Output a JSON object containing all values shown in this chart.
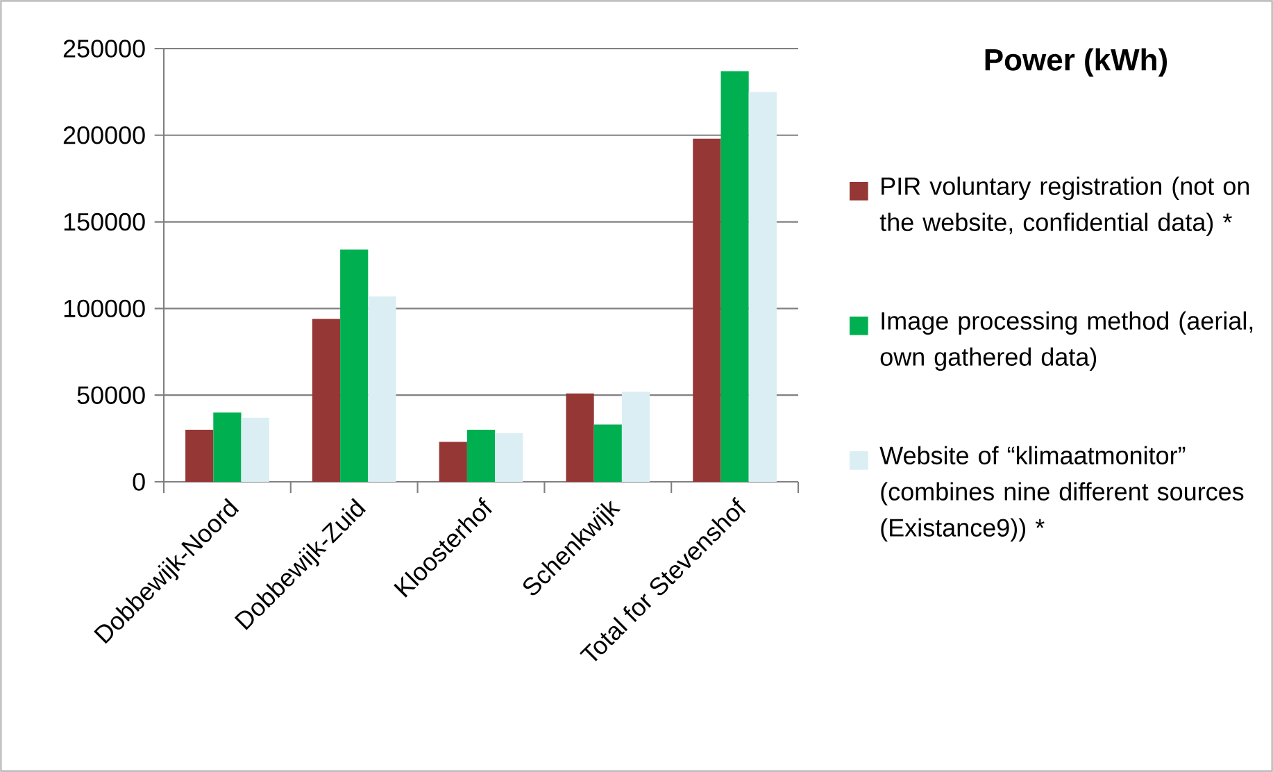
{
  "chart_data": {
    "type": "bar",
    "legend_title": "Power (kWh)",
    "categories": [
      "Dobbewijk-Noord",
      "Dobbewijk-Zuid",
      "Kloosterhof",
      "Schenkwijk",
      "Total for Stevenshof"
    ],
    "series": [
      {
        "name": "PIR voluntary registration (not on the website, confidential data) *",
        "color": "#953735",
        "values": [
          30000,
          94000,
          23000,
          51000,
          198000
        ]
      },
      {
        "name": "Image processing method (aerial, own gathered data)",
        "color": "#00b050",
        "values": [
          40000,
          134000,
          30000,
          33000,
          237000
        ]
      },
      {
        "name": "Website of “klimaatmonitor” (combines nine different sources (Existance9)) *",
        "color": "#dbeef4",
        "values": [
          37000,
          107000,
          28000,
          52000,
          225000
        ]
      }
    ],
    "ylim": [
      0,
      250000
    ],
    "yticks": [
      0,
      50000,
      100000,
      150000,
      200000,
      250000
    ],
    "grid": "y",
    "legend": "right"
  }
}
